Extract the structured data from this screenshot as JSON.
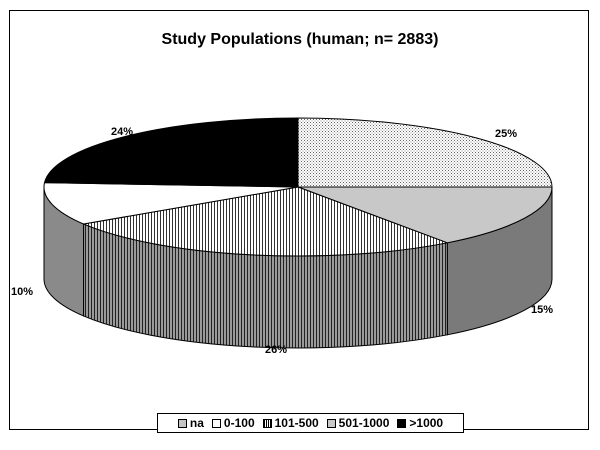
{
  "chart_data": {
    "type": "pie",
    "title": "Study Populations (human; n= 2883)",
    "categories": [
      "na",
      "0-100",
      "101-500",
      "501-1000",
      ">1000"
    ],
    "values": [
      25,
      10,
      26,
      15,
      24
    ],
    "value_labels": [
      "25%",
      "10%",
      "26%",
      "15%",
      "24%"
    ],
    "style": "3d-exploded-none",
    "legend_position": "bottom",
    "colors": [
      "#e8e8e8",
      "#ffffff",
      "#d8d8d8",
      "#c8c8c8",
      "#000000"
    ]
  }
}
